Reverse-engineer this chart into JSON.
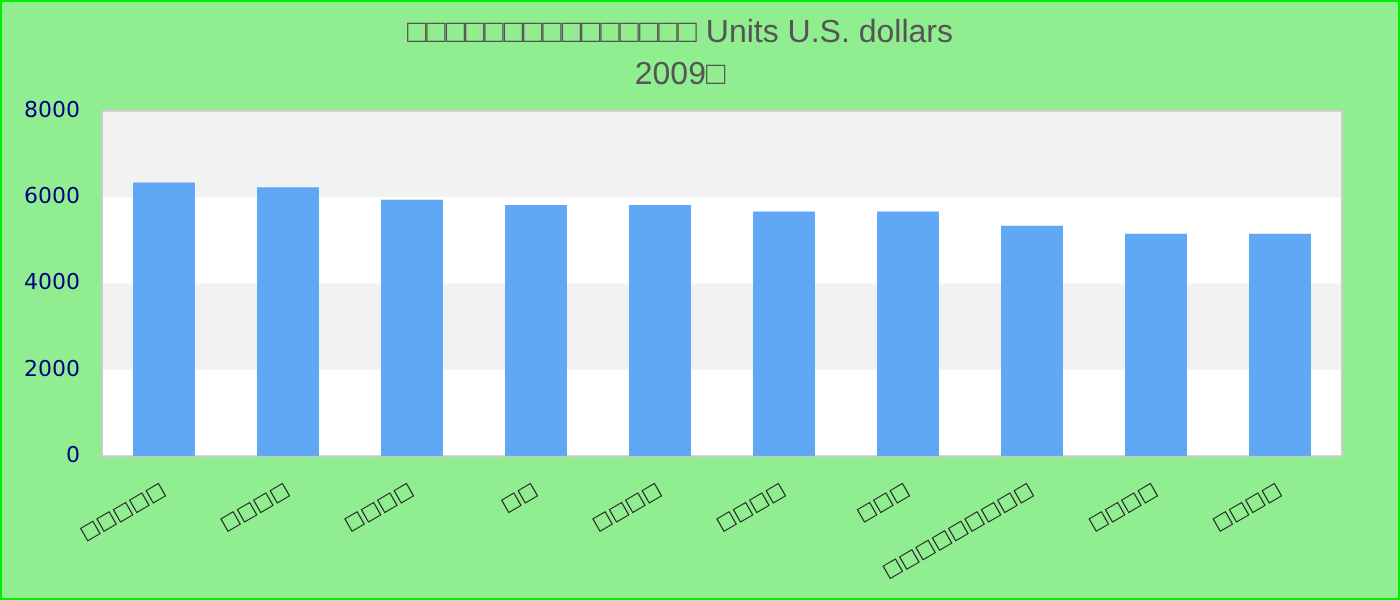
{
  "chart_data": {
    "type": "bar",
    "title": "□□□□□□□□□□□□□□□ Units U.S. dollars",
    "subtitle": "2009□",
    "categories": [
      "□□□□□",
      "□□□□",
      "□□□□",
      "□□",
      "□□□□",
      "□□□□",
      "□□□",
      "□□□□□□□□□",
      "□□□□",
      "□□□□"
    ],
    "values": [
      6340,
      6230,
      5940,
      5820,
      5820,
      5670,
      5670,
      5340,
      5150,
      5150
    ],
    "color": "#60a8f4",
    "ylim": [
      0,
      8000
    ],
    "yticks": [
      0,
      2000,
      4000,
      6000,
      8000
    ]
  }
}
